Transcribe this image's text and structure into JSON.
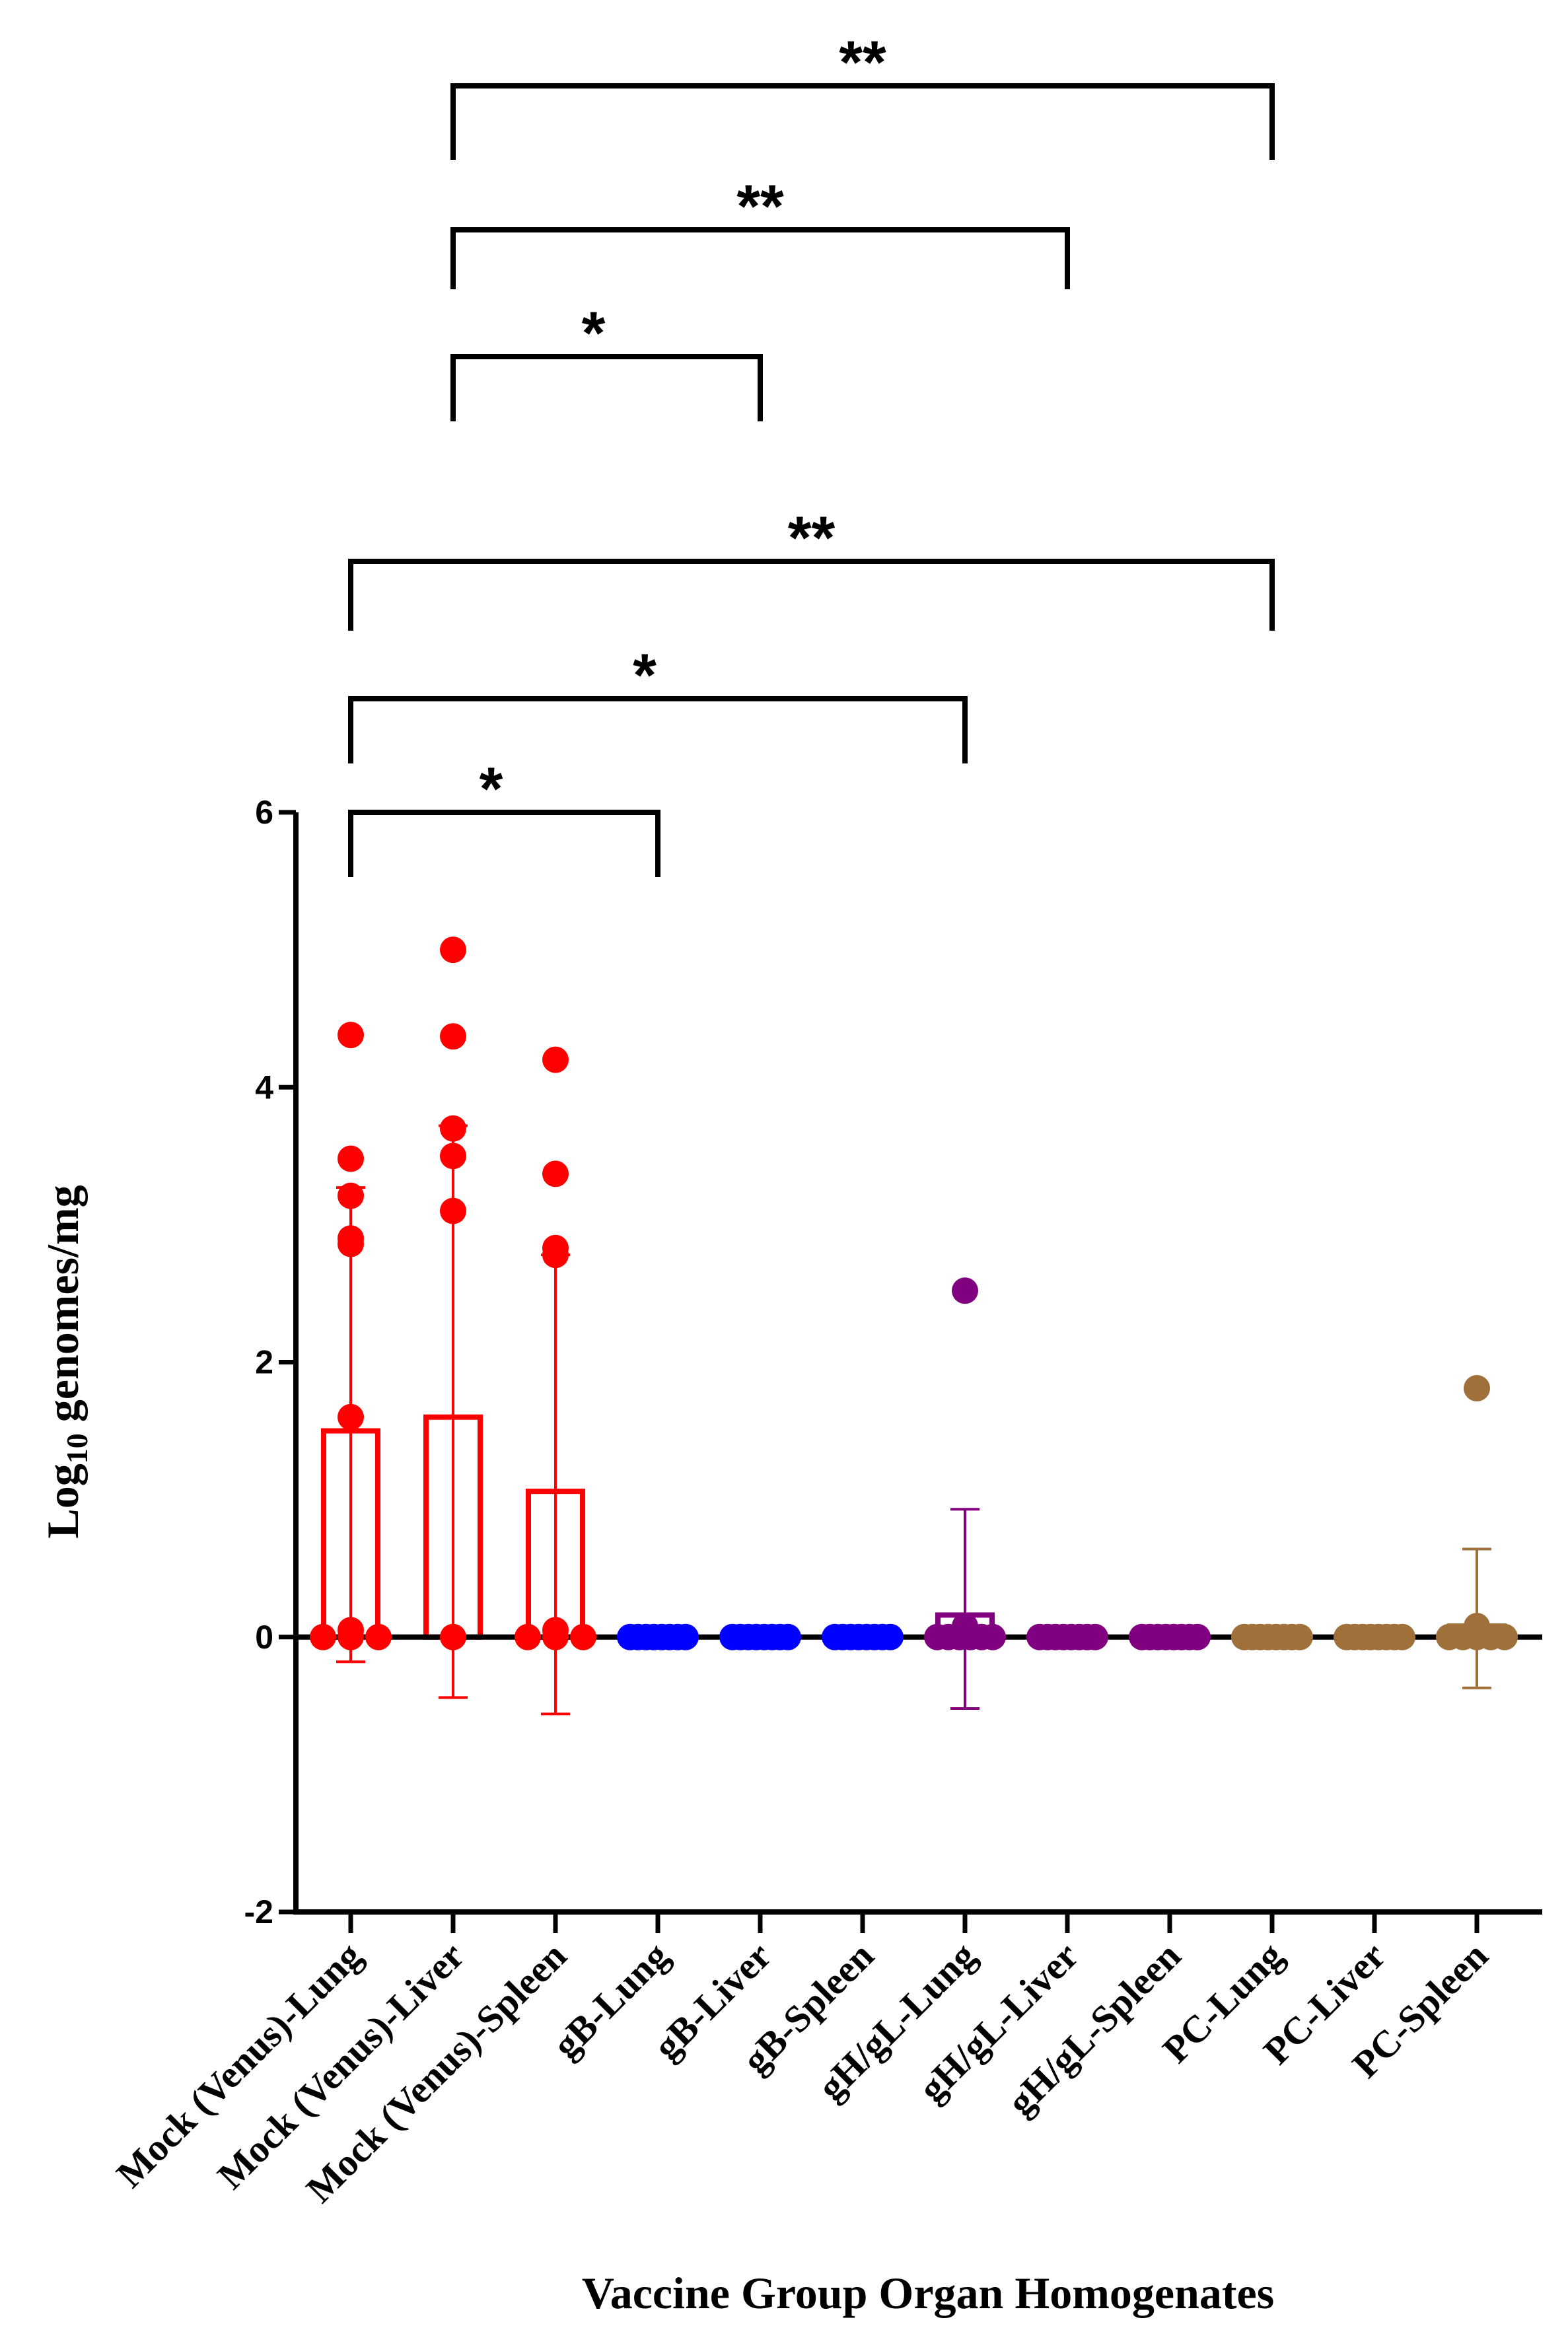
{
  "chart_data": {
    "type": "bar",
    "subtype": "bar-with-scatter-and-error-bars",
    "title": "",
    "xlabel": "Vaccine Group Organ Homogenates",
    "ylabel": {
      "prefix": "Log",
      "subscript": "10",
      "suffix": " genomes/mg"
    },
    "ylim": [
      -2,
      6
    ],
    "yticks": [
      -2,
      0,
      2,
      4,
      6
    ],
    "ytick_labels": [
      "-2",
      "0",
      "2",
      "4",
      "6"
    ],
    "colors": {
      "mock": "#ff0000",
      "gB": "#0000ff",
      "gHgL": "#800080",
      "PC": "#a0703a",
      "axis": "#000000"
    },
    "categories": [
      {
        "label": "Mock (Venus)-Lung",
        "group": "mock",
        "bar": 1.5,
        "err_upper": 3.27,
        "err_lower": -0.18,
        "points": [
          4.38,
          3.48,
          3.21,
          2.9,
          2.86,
          1.6,
          0.05,
          0,
          0,
          0
        ]
      },
      {
        "label": "Mock (Venus)-Liver",
        "group": "mock",
        "bar": 1.6,
        "err_upper": 3.72,
        "err_lower": -0.44,
        "points": [
          5.0,
          4.37,
          3.7,
          3.5,
          3.1,
          0
        ]
      },
      {
        "label": "Mock (Venus)-Spleen",
        "group": "mock",
        "bar": 1.06,
        "err_upper": 2.78,
        "err_lower": -0.56,
        "points": [
          4.2,
          3.37,
          2.83,
          2.78,
          0.05,
          0,
          0,
          0
        ]
      },
      {
        "label": "gB-Lung",
        "group": "gB",
        "bar": 0,
        "err_upper": 0,
        "err_lower": 0,
        "points": [
          0,
          0,
          0,
          0,
          0,
          0,
          0,
          0
        ]
      },
      {
        "label": "gB-Liver",
        "group": "gB",
        "bar": 0,
        "err_upper": 0,
        "err_lower": 0,
        "points": [
          0,
          0,
          0,
          0,
          0,
          0,
          0,
          0
        ]
      },
      {
        "label": "gB-Spleen",
        "group": "gB",
        "bar": 0,
        "err_upper": 0,
        "err_lower": 0,
        "points": [
          0,
          0,
          0,
          0,
          0,
          0,
          0,
          0
        ]
      },
      {
        "label": "gH/gL-Lung",
        "group": "gHgL",
        "bar": 0.16,
        "err_upper": 0.93,
        "err_lower": -0.52,
        "points": [
          2.52,
          0.08,
          0,
          0,
          0,
          0,
          0,
          0
        ]
      },
      {
        "label": "gH/gL-Liver",
        "group": "gHgL",
        "bar": 0,
        "err_upper": 0,
        "err_lower": 0,
        "points": [
          0,
          0,
          0,
          0,
          0,
          0,
          0,
          0
        ]
      },
      {
        "label": "gH/gL-Spleen",
        "group": "gHgL",
        "bar": 0,
        "err_upper": 0,
        "err_lower": 0,
        "points": [
          0,
          0,
          0,
          0,
          0,
          0,
          0,
          0
        ]
      },
      {
        "label": "PC-Lung",
        "group": "PC",
        "bar": 0,
        "err_upper": 0,
        "err_lower": 0,
        "points": [
          0,
          0,
          0,
          0,
          0,
          0,
          0,
          0
        ]
      },
      {
        "label": "PC-Liver",
        "group": "PC",
        "bar": 0,
        "err_upper": 0,
        "err_lower": 0,
        "points": [
          0,
          0,
          0,
          0,
          0,
          0,
          0,
          0
        ]
      },
      {
        "label": "PC-Spleen",
        "group": "PC",
        "bar": 0.08,
        "err_upper": 0.64,
        "err_lower": -0.37,
        "points": [
          1.81,
          0.08,
          0.05,
          0,
          0,
          0,
          0,
          0
        ]
      }
    ],
    "significance": [
      {
        "from": 1,
        "to": 9,
        "label": "**"
      },
      {
        "from": 1,
        "to": 7,
        "label": "**"
      },
      {
        "from": 1,
        "to": 4,
        "label": "*"
      },
      {
        "from": 0,
        "to": 9,
        "label": "**"
      },
      {
        "from": 0,
        "to": 6,
        "label": "*"
      },
      {
        "from": 0,
        "to": 3,
        "label": "*"
      }
    ]
  }
}
